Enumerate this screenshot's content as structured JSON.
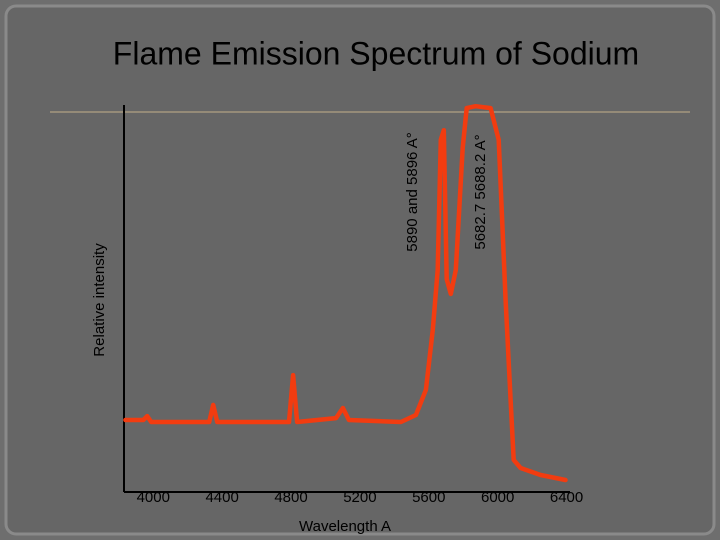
{
  "chart_data": {
    "type": "line",
    "title": "Flame Emission Spectrum of Sodium",
    "xlabel": "Wavelength  A",
    "ylabel": "Relative intensity",
    "annotations": [
      "5890 and 5896 A°",
      "5682.7 5688.2 A°"
    ],
    "color": "#f23c10",
    "x": [
      3838,
      3942,
      3965,
      3988,
      4325,
      4348,
      4371,
      4788,
      4812,
      4835,
      5061,
      5101,
      5136,
      5438,
      5525,
      5583,
      5623,
      5652,
      5670,
      5687,
      5704,
      5728,
      5757,
      5797,
      5820,
      5872,
      5959,
      6006,
      6046,
      6075,
      6093,
      6133,
      6249,
      6394
    ],
    "values": [
      18.6,
      18.6,
      19.6,
      18.1,
      18.1,
      22.5,
      18.1,
      18.1,
      30.2,
      18.1,
      19.1,
      21.7,
      18.6,
      18.1,
      19.9,
      26.4,
      41.9,
      57.4,
      91.0,
      93.5,
      55.0,
      51.2,
      57.4,
      88.9,
      99.2,
      99.7,
      99.2,
      91.0,
      49.6,
      23.8,
      8.3,
      6.2,
      4.4,
      3.1
    ],
    "xlim": [
      3830,
      6420
    ],
    "xticks": [
      4000,
      4400,
      4800,
      5200,
      5600,
      6000,
      6400
    ],
    "ylim": [
      0,
      100
    ]
  }
}
